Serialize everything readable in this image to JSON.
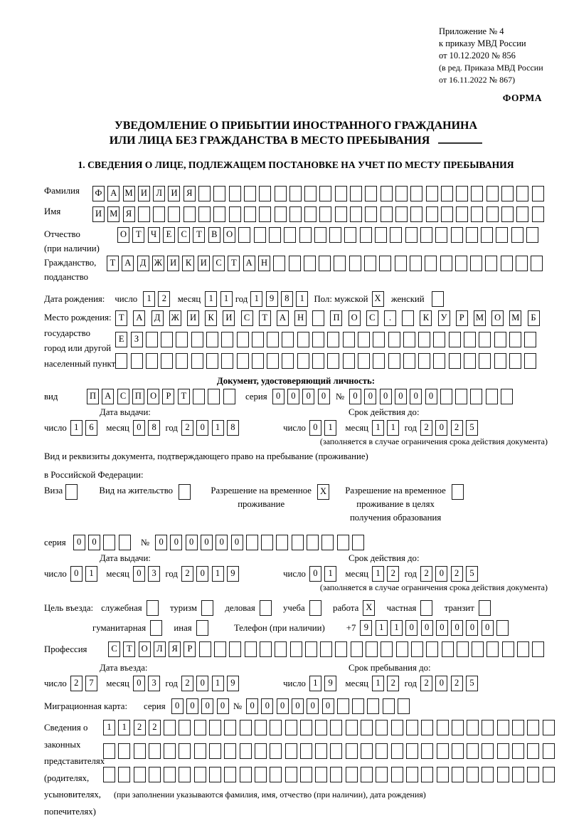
{
  "colors": {
    "ink": "#000000",
    "paper": "#ffffff"
  },
  "header": {
    "appendix_lines": [
      "Приложение № 4",
      "к приказу МВД России",
      "от 10.12.2020 № 856"
    ],
    "edition_lines": [
      "(в ред. Приказа МВД России",
      "от 16.11.2022 № 867)"
    ],
    "form_label": "ФОРМА"
  },
  "title": {
    "line1": "УВЕДОМЛЕНИЕ О ПРИБЫТИИ ИНОСТРАННОГО ГРАЖДАНИНА",
    "line2": "ИЛИ ЛИЦА БЕЗ ГРАЖДАНСТВА В МЕСТО ПРЕБЫВАНИЯ"
  },
  "section1_heading": "1. СВЕДЕНИЯ О ЛИЦЕ, ПОДЛЕЖАЩЕМ ПОСТАНОВКЕ НА УЧЕТ ПО МЕСТУ ПРЕБЫВАНИЯ",
  "surname": {
    "label": "Фамилия",
    "cells": {
      "value": "ФАМИЛИЯ",
      "total": 30
    }
  },
  "given_name": {
    "label": "Имя",
    "cells": {
      "value": "ИМЯ",
      "total": 30
    }
  },
  "patronymic": {
    "label_line1": "Отчество",
    "label_line2": "(при наличии)",
    "cells": {
      "value": "ОТЧЕСТВО",
      "total": 28
    }
  },
  "citizenship": {
    "label_line1": "Гражданство,",
    "label_line2": "подданство",
    "cells": {
      "value": "ТАДЖИКИСТАН",
      "total": 29
    }
  },
  "birth_date": {
    "label": "Дата рождения:",
    "day_label": "число",
    "day": {
      "value": "12",
      "total": 2
    },
    "month_label": "месяц",
    "month": {
      "value": "11",
      "total": 2
    },
    "year_label": "год",
    "year": {
      "value": "1981",
      "total": 4
    },
    "sex_male_label": "Пол: мужской",
    "male_box": {
      "value": "X",
      "total": 1
    },
    "sex_female_label": "женский",
    "female_box": {
      "value": "",
      "total": 1
    }
  },
  "birth_place": {
    "label_lines": [
      "Место рождения:",
      "государство",
      "город или другой",
      "населенный пункт"
    ],
    "row1": {
      "value": "ТАДЖИКИСТАН ПОС. КУРМОМБ",
      "total": 24
    },
    "row2": {
      "value": "ЕЗ",
      "total": 28
    },
    "row3": {
      "value": "",
      "total": 28
    }
  },
  "identity_doc": {
    "heading": "Документ, удостоверяющий личность:",
    "type_label": "вид",
    "type": {
      "value": "ПАСПОРТ",
      "total": 10
    },
    "series_label": "серия",
    "series": {
      "value": "0000",
      "total": 4
    },
    "number_label": "№",
    "number": {
      "value": "000000",
      "total": 11
    },
    "issue_title": "Дата выдачи:",
    "issue": {
      "day_label": "число",
      "day": {
        "value": "16",
        "total": 2
      },
      "month_label": "месяц",
      "month": {
        "value": "08",
        "total": 2
      },
      "year_label": "год",
      "year": {
        "value": "2018",
        "total": 4
      }
    },
    "expiry_title": "Срок действия до:",
    "expiry": {
      "day_label": "число",
      "day": {
        "value": "01",
        "total": 2
      },
      "month_label": "месяц",
      "month": {
        "value": "11",
        "total": 2
      },
      "year_label": "год",
      "year": {
        "value": "2025",
        "total": 4
      }
    },
    "note": "(заполняется в случае ограничения срока действия документа)"
  },
  "resident_doc": {
    "intro_line1": "Вид и реквизиты документа, подтверждающего право на пребывание (проживание)",
    "intro_line2": "в Российской Федерации:",
    "options": [
      {
        "lines": [
          "Виза"
        ],
        "box": {
          "value": "",
          "total": 1
        }
      },
      {
        "lines": [
          "Вид на жительство"
        ],
        "box": {
          "value": "",
          "total": 1
        }
      },
      {
        "lines": [
          "Разрешение на временное",
          "проживание"
        ],
        "box": {
          "value": "X",
          "total": 1
        }
      },
      {
        "lines": [
          "Разрешение на временное",
          "проживание в целях",
          "получения образования"
        ],
        "box": {
          "value": "",
          "total": 1
        }
      }
    ],
    "series_label": "серия",
    "series": {
      "value": "00",
      "total": 4
    },
    "number_label": "№",
    "number": {
      "value": "000000",
      "total": 14
    },
    "issue_title": "Дата выдачи:",
    "issue": {
      "day_label": "число",
      "day": {
        "value": "01",
        "total": 2
      },
      "month_label": "месяц",
      "month": {
        "value": "03",
        "total": 2
      },
      "year_label": "год",
      "year": {
        "value": "2019",
        "total": 4
      }
    },
    "expiry_title": "Срок действия до:",
    "expiry": {
      "day_label": "число",
      "day": {
        "value": "01",
        "total": 2
      },
      "month_label": "месяц",
      "month": {
        "value": "12",
        "total": 2
      },
      "year_label": "год",
      "year": {
        "value": "2025",
        "total": 4
      }
    },
    "note": "(заполняется в случае ограничения срока действия документа)"
  },
  "visit_purpose": {
    "intro": "Цель въезда:",
    "line1": [
      {
        "label": "служебная",
        "box": {
          "value": "",
          "total": 1
        }
      },
      {
        "label": "туризм",
        "box": {
          "value": "",
          "total": 1
        }
      },
      {
        "label": "деловая",
        "box": {
          "value": "",
          "total": 1
        }
      },
      {
        "label": "учеба",
        "box": {
          "value": "",
          "total": 1
        }
      },
      {
        "label": "работа",
        "box": {
          "value": "X",
          "total": 1
        }
      },
      {
        "label": "частная",
        "box": {
          "value": "",
          "total": 1
        }
      },
      {
        "label": "транзит",
        "box": {
          "value": "",
          "total": 1
        }
      }
    ],
    "line2": [
      {
        "label": "гуманитарная",
        "box": {
          "value": "",
          "total": 1
        }
      },
      {
        "label": "иная",
        "box": {
          "value": "",
          "total": 1
        }
      }
    ],
    "phone_label": "Телефон (при наличии)",
    "phone_prefix": "+7",
    "phone": {
      "value": "911000000",
      "total": 10
    }
  },
  "profession": {
    "label": "Профессия",
    "cells": {
      "value": "СТОЛЯР",
      "total": 29
    }
  },
  "entry_dates": {
    "entry_title": "Дата въезда:",
    "entry": {
      "day_label": "число",
      "day": {
        "value": "27",
        "total": 2
      },
      "month_label": "месяц",
      "month": {
        "value": "03",
        "total": 2
      },
      "year_label": "год",
      "year": {
        "value": "2019",
        "total": 4
      }
    },
    "stay_title": "Срок пребывания до:",
    "stay": {
      "day_label": "число",
      "day": {
        "value": "19",
        "total": 2
      },
      "month_label": "месяц",
      "month": {
        "value": "12",
        "total": 2
      },
      "year_label": "год",
      "year": {
        "value": "2025",
        "total": 4
      }
    }
  },
  "migration_card": {
    "label": "Миграционная карта:",
    "series_label": "серия",
    "series": {
      "value": "0000",
      "total": 4
    },
    "number_label": "№",
    "number": {
      "value": "000000",
      "total": 11
    }
  },
  "representatives": {
    "label_lines": [
      "Сведения о",
      "законных",
      "представителях",
      "(родителях,",
      "усыновителях,",
      "попечителях)"
    ],
    "row1": {
      "value": "1122",
      "total": 30
    },
    "row2": {
      "value": "",
      "total": 30
    },
    "row3": {
      "value": "",
      "total": 30
    },
    "note": "(при заполнении указываются фамилия, имя, отчество (при наличии), дата рождения)"
  }
}
